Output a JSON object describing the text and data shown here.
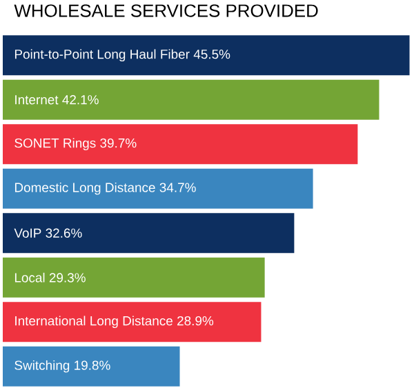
{
  "chart_data": {
    "type": "bar",
    "orientation": "horizontal",
    "title": "WHOLESALE SERVICES PROVIDED",
    "categories": [
      "Point-to-Point Long Haul Fiber",
      "Internet",
      "SONET Rings",
      "Domestic Long Distance",
      "VoIP",
      "Local",
      "International Long Distance",
      "Switching"
    ],
    "values": [
      45.5,
      42.1,
      39.7,
      34.7,
      32.6,
      29.3,
      28.9,
      19.8
    ],
    "value_labels": [
      "45.5%",
      "42.1%",
      "39.7%",
      "34.7%",
      "32.6%",
      "29.3%",
      "28.9%",
      "19.8%"
    ],
    "colors": [
      "#0d2f60",
      "#74a535",
      "#ef3340",
      "#3a86bf",
      "#0d2f60",
      "#74a535",
      "#ef3340",
      "#3a86bf"
    ],
    "xlim": [
      0,
      46
    ]
  }
}
